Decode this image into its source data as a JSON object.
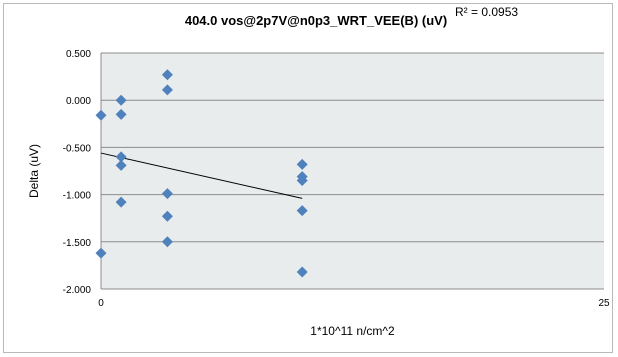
{
  "chart_data": {
    "type": "scatter",
    "title": "404.0  vos@2p7V@n0p3_WRT_VEE(B) (uV)",
    "xlabel": "1*10^11 n/cm^2",
    "ylabel": "Delta (uV)",
    "xlim": [
      0,
      25
    ],
    "ylim": [
      -2.0,
      0.5
    ],
    "x_ticks": [
      0,
      25
    ],
    "x_tick_labels": [
      "0",
      "25"
    ],
    "y_ticks": [
      0.5,
      0.0,
      -0.5,
      -1.0,
      -1.5,
      -2.0
    ],
    "y_tick_labels": [
      "0.500",
      "0.000",
      "-0.500",
      "-1.000",
      "-1.500",
      "-2.000"
    ],
    "grid": true,
    "legend": "none",
    "colors": {
      "marker": "#4f81bd",
      "plot_area": "#e8ecec",
      "trendline": "#000000",
      "grid": "#8c8c8c"
    },
    "points": [
      {
        "x": 0,
        "y": -0.16
      },
      {
        "x": 0,
        "y": -1.62
      },
      {
        "x": 1,
        "y": 0.0
      },
      {
        "x": 1,
        "y": -0.15
      },
      {
        "x": 1,
        "y": -0.6
      },
      {
        "x": 1,
        "y": -0.69
      },
      {
        "x": 1,
        "y": -1.08
      },
      {
        "x": 3.3,
        "y": 0.27
      },
      {
        "x": 3.3,
        "y": 0.11
      },
      {
        "x": 3.3,
        "y": -0.99
      },
      {
        "x": 3.3,
        "y": -1.23
      },
      {
        "x": 3.3,
        "y": -1.5
      },
      {
        "x": 10,
        "y": -0.68
      },
      {
        "x": 10,
        "y": -0.81
      },
      {
        "x": 10,
        "y": -0.85
      },
      {
        "x": 10,
        "y": -1.17
      },
      {
        "x": 10,
        "y": -1.82
      }
    ],
    "trendline": {
      "x": [
        0,
        10
      ],
      "y": [
        -0.56,
        -1.04
      ],
      "r2_label": "R² = 0.0953"
    }
  }
}
